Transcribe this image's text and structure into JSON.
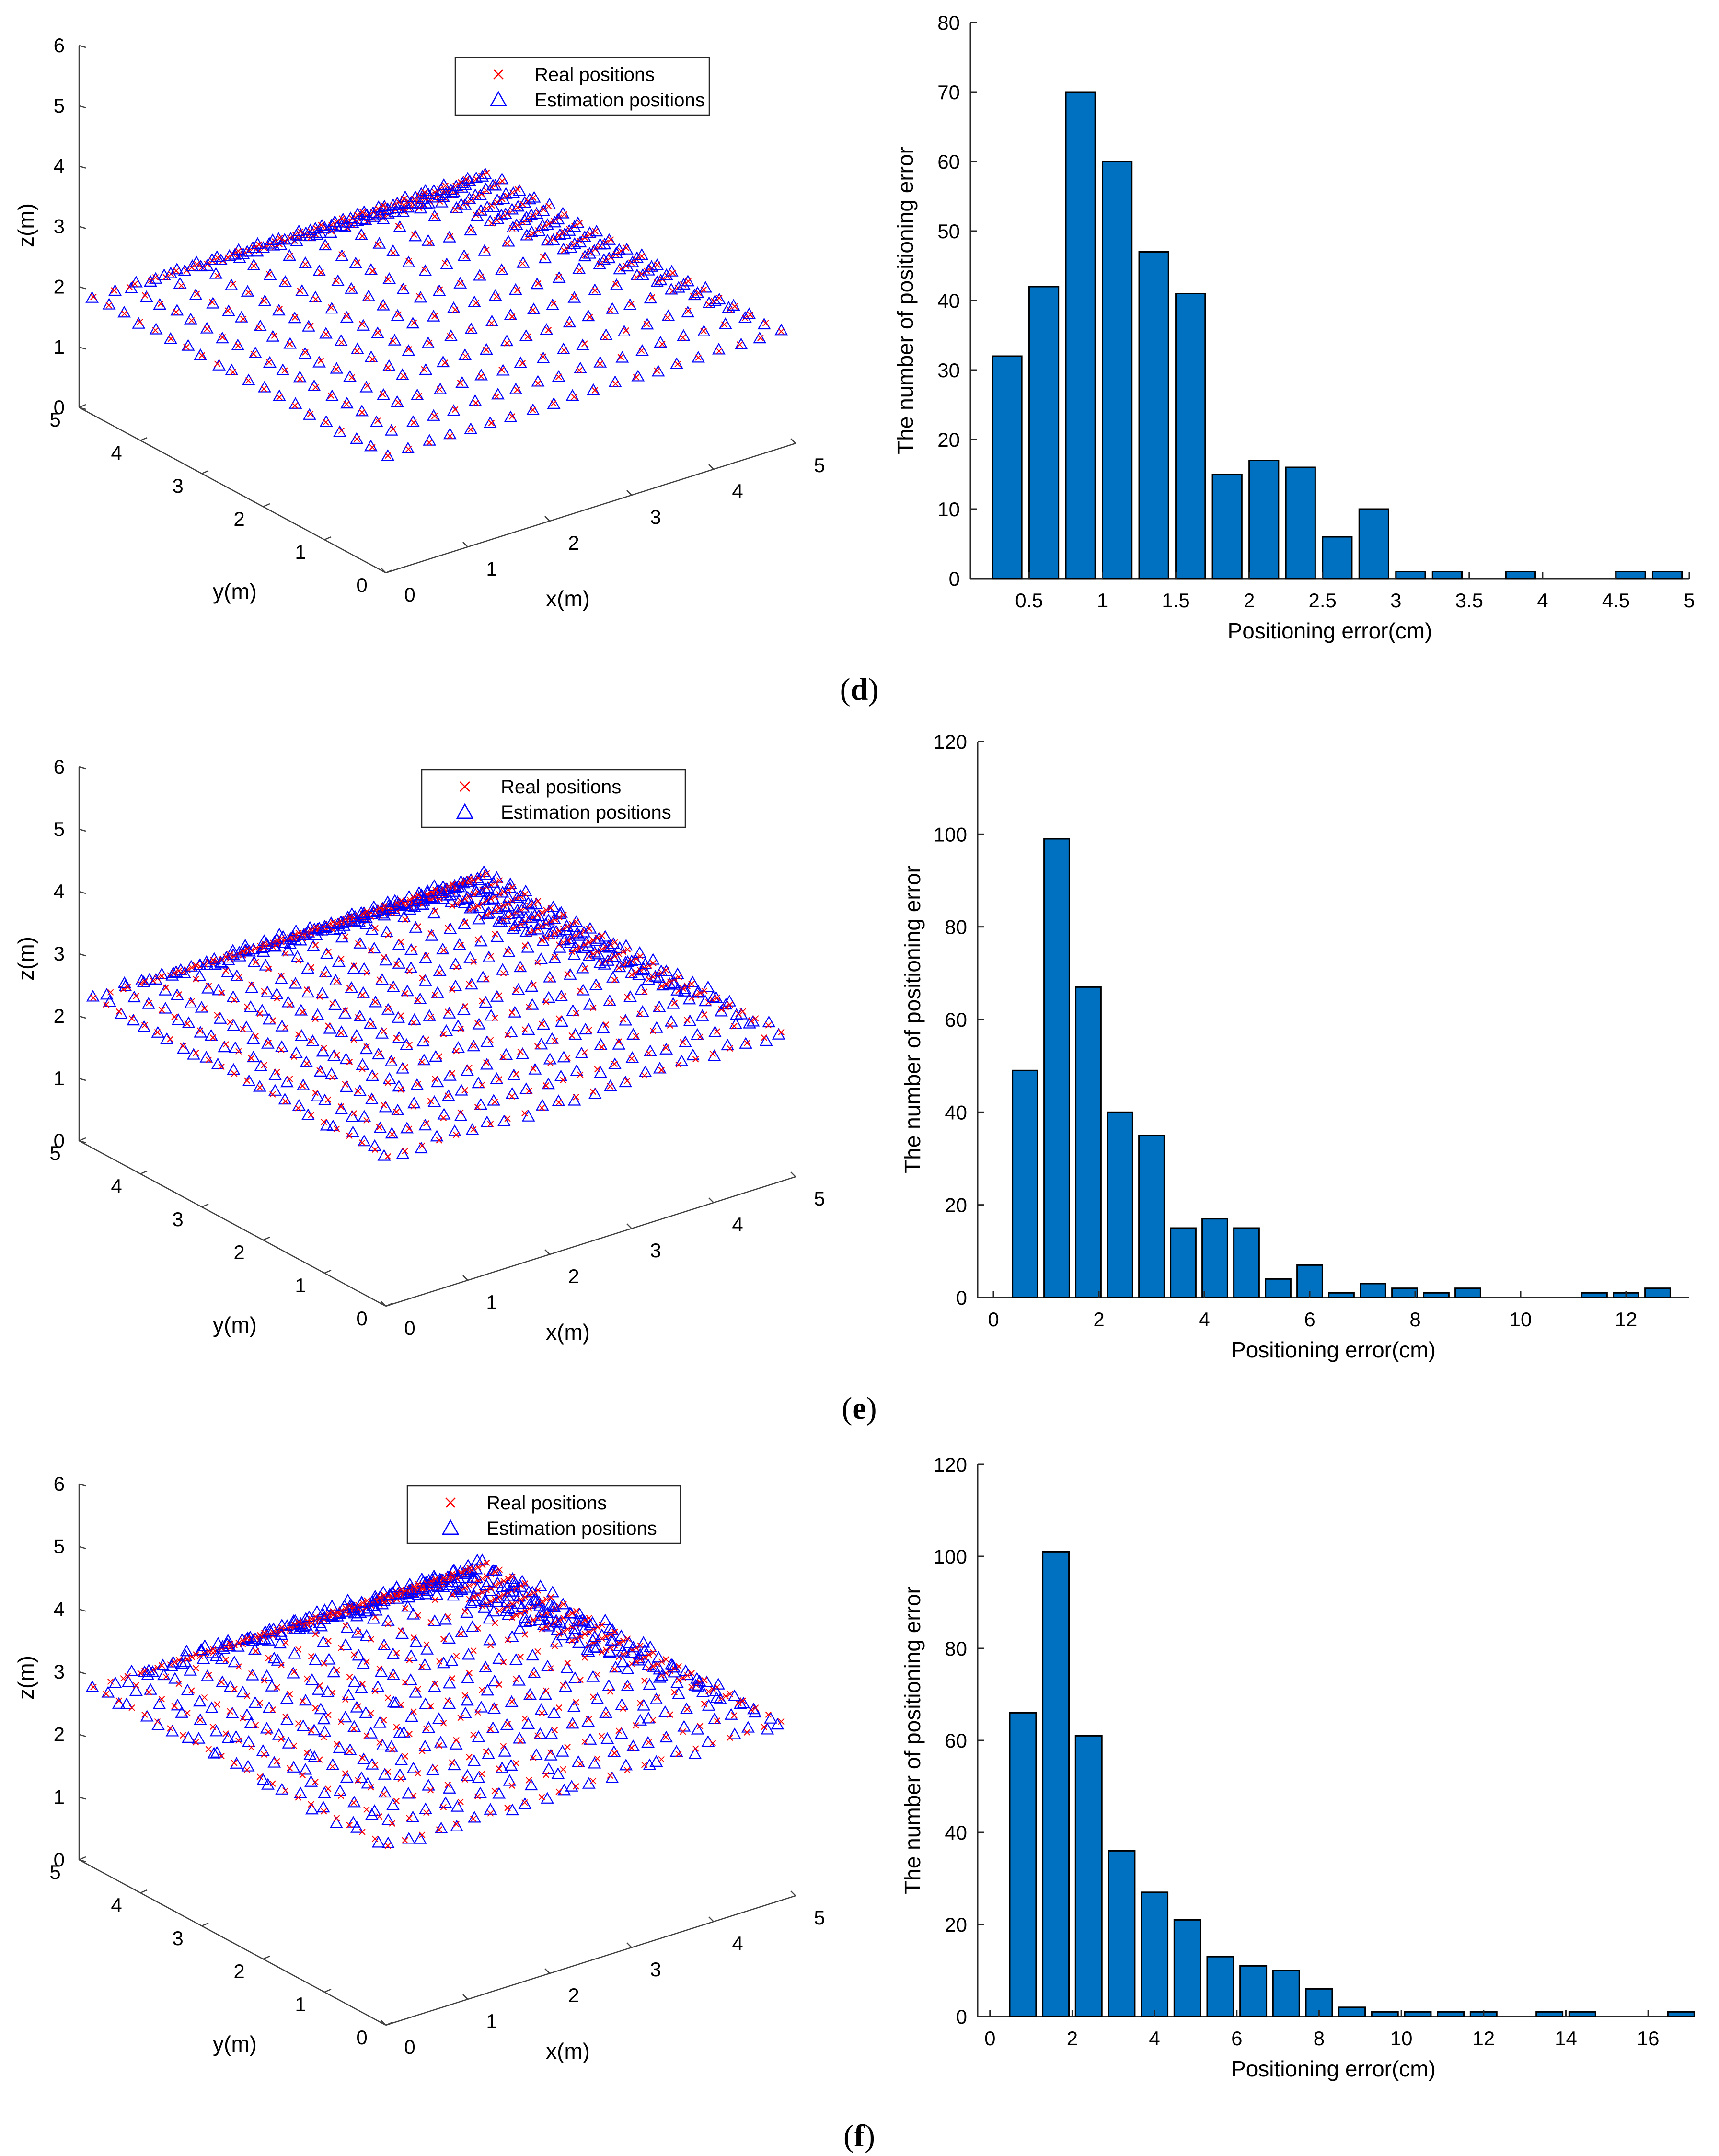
{
  "figure": {
    "panels": [
      {
        "label_open": "(",
        "label_letter": "d",
        "label_close": ")"
      },
      {
        "label_open": "(",
        "label_letter": "e",
        "label_close": ")"
      },
      {
        "label_open": "(",
        "label_letter": "f",
        "label_close": ")"
      }
    ]
  },
  "chart_data": [
    {
      "type": "scatter3d",
      "panel": "d",
      "xlabel": "x(m)",
      "ylabel": "y(m)",
      "zlabel": "z(m)",
      "xlim": [
        0,
        5
      ],
      "ylim": [
        0,
        5
      ],
      "zlim": [
        0,
        6
      ],
      "xticks": [
        "0",
        "1",
        "2",
        "3",
        "4",
        "5"
      ],
      "yticks": [
        "0",
        "1",
        "2",
        "3",
        "4",
        "5"
      ],
      "zticks": [
        "0",
        "1",
        "2",
        "3",
        "4",
        "5",
        "6"
      ],
      "legend": [
        {
          "label": "Real positions",
          "marker": "x",
          "color": "#ff0000"
        },
        {
          "label": "Estimation positions",
          "marker": "triangle",
          "color": "#0000ff"
        }
      ],
      "legend_location": "top-center",
      "grid": {
        "n": 20,
        "x_range": [
          0.1,
          4.9
        ],
        "y_range": [
          0.1,
          4.9
        ],
        "z_min": 2.0,
        "z_max": 4.0
      },
      "noise": 0.02
    },
    {
      "type": "bar",
      "panel": "d",
      "title": "",
      "xlabel": "Positioning error(cm)",
      "ylabel": "The number of positioning error",
      "xlim": [
        0.1,
        5.0
      ],
      "ylim": [
        0,
        80
      ],
      "xticks": [
        "0.5",
        "1",
        "1.5",
        "2",
        "2.5",
        "3",
        "3.5",
        "4",
        "4.5",
        "5"
      ],
      "yticks": [
        "0",
        "10",
        "20",
        "30",
        "40",
        "50",
        "60",
        "70",
        "80"
      ],
      "bin_width": 0.25,
      "centers": [
        0.35,
        0.6,
        0.85,
        1.1,
        1.35,
        1.6,
        1.85,
        2.1,
        2.35,
        2.6,
        2.85,
        3.1,
        3.35,
        3.6,
        3.85,
        4.1,
        4.35,
        4.6,
        4.85
      ],
      "values": [
        32,
        42,
        70,
        60,
        47,
        41,
        15,
        17,
        16,
        6,
        10,
        1,
        1,
        0,
        1,
        0,
        0,
        1,
        1
      ],
      "color": "#0070c0"
    },
    {
      "type": "scatter3d",
      "panel": "e",
      "xlabel": "x(m)",
      "ylabel": "y(m)",
      "zlabel": "z(m)",
      "xlim": [
        0,
        5
      ],
      "ylim": [
        0,
        5
      ],
      "zlim": [
        0,
        6
      ],
      "xticks": [
        "0",
        "1",
        "2",
        "3",
        "4",
        "5"
      ],
      "yticks": [
        "0",
        "1",
        "2",
        "3",
        "4",
        "5"
      ],
      "zticks": [
        "0",
        "1",
        "2",
        "3",
        "4",
        "5",
        "6"
      ],
      "legend": [
        {
          "label": "Real positions",
          "marker": "x",
          "color": "#ff0000"
        },
        {
          "label": "Estimation positions",
          "marker": "triangle",
          "color": "#0000ff"
        }
      ],
      "legend_location": "top-center",
      "grid": {
        "n": 24,
        "x_range": [
          0.1,
          4.9
        ],
        "y_range": [
          0.1,
          4.9
        ],
        "z_min": 2.5,
        "z_max": 4.5
      },
      "noise": 0.04
    },
    {
      "type": "bar",
      "panel": "e",
      "title": "",
      "xlabel": "Positioning error(cm)",
      "ylabel": "The number of positioning error",
      "xlim": [
        -0.3,
        13.2
      ],
      "ylim": [
        0,
        120
      ],
      "xticks": [
        "0",
        "2",
        "4",
        "6",
        "8",
        "10",
        "12"
      ],
      "yticks": [
        "0",
        "20",
        "40",
        "60",
        "80",
        "100",
        "120"
      ],
      "bin_width": 0.6,
      "centers": [
        0.6,
        1.2,
        1.8,
        2.4,
        3.0,
        3.6,
        4.2,
        4.8,
        5.4,
        6.0,
        6.6,
        7.2,
        7.8,
        8.4,
        9.0,
        9.6,
        10.2,
        10.8,
        11.4,
        12.0,
        12.6
      ],
      "values": [
        49,
        99,
        67,
        40,
        35,
        15,
        17,
        15,
        4,
        7,
        1,
        3,
        2,
        1,
        2,
        0,
        0,
        0,
        1,
        1,
        2
      ],
      "color": "#0070c0"
    },
    {
      "type": "scatter3d",
      "panel": "f",
      "xlabel": "x(m)",
      "ylabel": "y(m)",
      "zlabel": "z(m)",
      "xlim": [
        0,
        5
      ],
      "ylim": [
        0,
        5
      ],
      "zlim": [
        0,
        6
      ],
      "xticks": [
        "0",
        "1",
        "2",
        "3",
        "4",
        "5"
      ],
      "yticks": [
        "0",
        "1",
        "2",
        "3",
        "4",
        "5"
      ],
      "zticks": [
        "0",
        "1",
        "2",
        "3",
        "4",
        "5",
        "6"
      ],
      "legend": [
        {
          "label": "Real positions",
          "marker": "x",
          "color": "#ff0000"
        },
        {
          "label": "Estimation positions",
          "marker": "triangle",
          "color": "#0000ff"
        }
      ],
      "legend_location": "top-center",
      "grid": {
        "n": 24,
        "x_range": [
          0.1,
          4.9
        ],
        "y_range": [
          0.1,
          4.9
        ],
        "z_min": 3.0,
        "z_max": 5.0
      },
      "noise": 0.06
    },
    {
      "type": "bar",
      "panel": "f",
      "title": "",
      "xlabel": "Positioning error(cm)",
      "ylabel": "The number of positioning error",
      "xlim": [
        -0.3,
        17.0
      ],
      "ylim": [
        0,
        120
      ],
      "xticks": [
        "0",
        "2",
        "4",
        "6",
        "8",
        "10",
        "12",
        "14",
        "16"
      ],
      "yticks": [
        "0",
        "20",
        "40",
        "60",
        "80",
        "100",
        "120"
      ],
      "bin_width": 0.8,
      "centers": [
        0.8,
        1.6,
        2.4,
        3.2,
        4.0,
        4.8,
        5.6,
        6.4,
        7.2,
        8.0,
        8.8,
        9.6,
        10.4,
        11.2,
        12.0,
        12.8,
        13.6,
        14.4,
        15.2,
        16.0,
        16.8
      ],
      "values": [
        66,
        101,
        61,
        36,
        27,
        21,
        13,
        11,
        10,
        6,
        2,
        1,
        1,
        1,
        1,
        0,
        1,
        1,
        0,
        0,
        1
      ],
      "color": "#0070c0"
    }
  ]
}
